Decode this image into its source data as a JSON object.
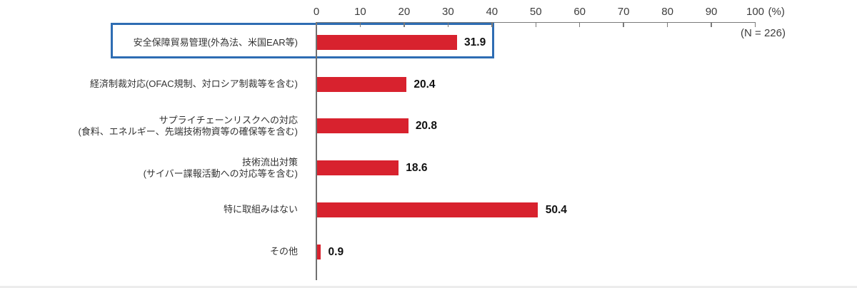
{
  "chart_data": {
    "type": "bar",
    "orientation": "horizontal",
    "n_label": "(N = 226)",
    "axis": {
      "unit_label": "(%)",
      "ticks": [
        0,
        10,
        20,
        30,
        40,
        50,
        60,
        70,
        80,
        90,
        100
      ],
      "min": 0,
      "max": 100,
      "grid": false
    },
    "bar_color": "#d8222e",
    "highlight_box_color": "#2e6db3",
    "categories": [
      "安全保障貿易管理(外為法、米国EAR等)",
      "経済制裁対応(OFAC規制、対ロシア制裁等を含む)",
      "サプライチェーンリスクへの対応 (食料、エネルギー、先端技術物資等の確保等を含む)",
      "技術流出対策 (サイバー諜報活動への対応等を含む)",
      "特に取組みはない",
      "その他"
    ],
    "values": [
      31.9,
      20.4,
      20.8,
      18.6,
      50.4,
      0.9
    ],
    "items": [
      {
        "label_lines": [
          "安全保障貿易管理(外為法、米国EAR等)"
        ],
        "value": "31.9",
        "highlighted": true
      },
      {
        "label_lines": [
          "経済制裁対応(OFAC規制、対ロシア制裁等を含む)"
        ],
        "value": "20.4",
        "highlighted": false
      },
      {
        "label_lines": [
          "サプライチェーンリスクへの対応",
          "(食料、エネルギー、先端技術物資等の確保等を含む)"
        ],
        "value": "20.8",
        "highlighted": false
      },
      {
        "label_lines": [
          "技術流出対策",
          "(サイバー諜報活動への対応等を含む)"
        ],
        "value": "18.6",
        "highlighted": false
      },
      {
        "label_lines": [
          "特に取組みはない"
        ],
        "value": "50.4",
        "highlighted": false
      },
      {
        "label_lines": [
          "その他"
        ],
        "value": "0.9",
        "highlighted": false
      }
    ]
  }
}
